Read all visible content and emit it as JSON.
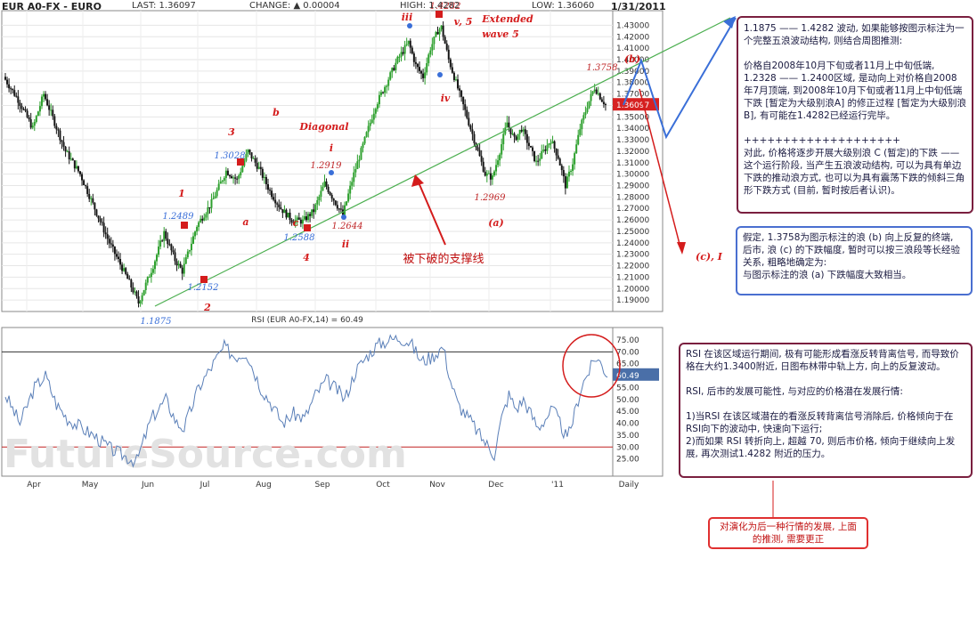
{
  "header": {
    "symbol": "EUR A0-FX - EURO",
    "last": "LAST: 1.36097",
    "change": "CHANGE: ▲ 0.00004",
    "high": "HIGH: 1.4282",
    "low": "LOW: 1.36060",
    "date": "1/31/2011"
  },
  "colors": {
    "candle_up": "#2ea02e",
    "candle_down": "#151515",
    "trendline": "#4caf50",
    "annotation_red": "#d41c1c",
    "annotation_blue": "#3a6fd8",
    "rsi_line": "#5a7fb8",
    "box_border": "#7a1f3f"
  },
  "chart_data": [
    {
      "type": "candlestick",
      "title": "",
      "ylabel": "",
      "ylim": [
        1.18,
        1.435
      ],
      "grid": true,
      "y_ticks": [
        "1.43000",
        "1.42000",
        "1.41000",
        "1.40000",
        "1.39000",
        "1.38000",
        "1.37000",
        "1.36000",
        "1.35000",
        "1.34000",
        "1.33000",
        "1.32000",
        "1.31000",
        "1.30000",
        "1.29000",
        "1.28000",
        "1.27000",
        "1.26000",
        "1.25000",
        "1.24000",
        "1.23000",
        "1.22000",
        "1.21000",
        "1.20000",
        "1.19000"
      ],
      "x_ticks": [
        "Apr",
        "May",
        "Jun",
        "Jul",
        "Aug",
        "Sep",
        "Oct",
        "Nov",
        "Dec",
        "'11",
        "Daily"
      ],
      "last_price_label": "1.36097",
      "price_path": [
        [
          0,
          1.385
        ],
        [
          8,
          1.365
        ],
        [
          16,
          1.34
        ],
        [
          22,
          1.37
        ],
        [
          28,
          1.345
        ],
        [
          34,
          1.32
        ],
        [
          42,
          1.3
        ],
        [
          50,
          1.27
        ],
        [
          58,
          1.24
        ],
        [
          66,
          1.215
        ],
        [
          72,
          1.195
        ],
        [
          74,
          1.1875
        ],
        [
          82,
          1.22
        ],
        [
          88,
          1.2489
        ],
        [
          94,
          1.225
        ],
        [
          98,
          1.2152
        ],
        [
          106,
          1.255
        ],
        [
          114,
          1.275
        ],
        [
          122,
          1.3028
        ],
        [
          128,
          1.295
        ],
        [
          134,
          1.32
        ],
        [
          140,
          1.305
        ],
        [
          146,
          1.285
        ],
        [
          152,
          1.27
        ],
        [
          158,
          1.26
        ],
        [
          164,
          1.2588
        ],
        [
          170,
          1.268
        ],
        [
          176,
          1.2919
        ],
        [
          182,
          1.275
        ],
        [
          186,
          1.2644
        ],
        [
          192,
          1.3
        ],
        [
          198,
          1.33
        ],
        [
          204,
          1.36
        ],
        [
          210,
          1.38
        ],
        [
          216,
          1.4
        ],
        [
          222,
          1.415
        ],
        [
          226,
          1.395
        ],
        [
          230,
          1.385
        ],
        [
          234,
          1.41
        ],
        [
          238,
          1.425
        ],
        [
          240,
          1.4282
        ],
        [
          244,
          1.4
        ],
        [
          248,
          1.38
        ],
        [
          252,
          1.36
        ],
        [
          256,
          1.34
        ],
        [
          260,
          1.32
        ],
        [
          264,
          1.3
        ],
        [
          268,
          1.2969
        ],
        [
          272,
          1.32
        ],
        [
          276,
          1.345
        ],
        [
          280,
          1.33
        ],
        [
          284,
          1.34
        ],
        [
          288,
          1.325
        ],
        [
          292,
          1.31
        ],
        [
          296,
          1.32
        ],
        [
          300,
          1.33
        ],
        [
          304,
          1.315
        ],
        [
          308,
          1.29
        ],
        [
          312,
          1.31
        ],
        [
          316,
          1.34
        ],
        [
          320,
          1.36
        ],
        [
          324,
          1.3758
        ],
        [
          328,
          1.365
        ],
        [
          330,
          1.361
        ]
      ],
      "labels": [
        {
          "text": "1.1875",
          "x": 72,
          "y": 1.1875,
          "color": "blue"
        },
        {
          "text": "1.2152",
          "x": 98,
          "y": 1.2152,
          "color": "blue"
        },
        {
          "text": "1.2489",
          "x": 88,
          "y": 1.2489,
          "color": "blue"
        },
        {
          "text": "1.3028",
          "x": 122,
          "y": 1.3028,
          "color": "blue"
        },
        {
          "text": "1.2588",
          "x": 164,
          "y": 1.2588,
          "color": "blue"
        },
        {
          "text": "1.2644",
          "x": 186,
          "y": 1.2644,
          "color": "red"
        },
        {
          "text": "1.2919",
          "x": 176,
          "y": 1.2919,
          "color": "red"
        },
        {
          "text": "1.4282",
          "x": 240,
          "y": 1.4282,
          "color": "red"
        },
        {
          "text": "1.2969",
          "x": 268,
          "y": 1.2969,
          "color": "red"
        },
        {
          "text": "1.3758",
          "x": 324,
          "y": 1.3758,
          "color": "red"
        }
      ],
      "wave_labels": [
        "1",
        "2",
        "3",
        "4",
        "a",
        "b",
        "c",
        "i",
        "ii",
        "iii",
        "iv",
        "v, 5",
        "Extended",
        "wave 5",
        "Diagonal",
        "(a)",
        "(b)",
        "(c), I"
      ],
      "support_line_label": "被下破的支撑线"
    },
    {
      "type": "line",
      "title": "RSI (EUR A0-FX,14) = 60.49",
      "ylim": [
        20,
        78
      ],
      "y_ticks": [
        "75.00",
        "70.00",
        "65.00",
        "60.00",
        "55.00",
        "50.00",
        "45.00",
        "40.00",
        "35.00",
        "30.00",
        "25.00"
      ],
      "reference_lines": [
        70,
        30
      ],
      "last_value_label": "60.49",
      "rsi_path": [
        [
          0,
          52
        ],
        [
          8,
          40
        ],
        [
          16,
          55
        ],
        [
          22,
          60
        ],
        [
          28,
          48
        ],
        [
          34,
          42
        ],
        [
          42,
          38
        ],
        [
          50,
          34
        ],
        [
          58,
          29
        ],
        [
          66,
          26
        ],
        [
          72,
          24
        ],
        [
          80,
          42
        ],
        [
          88,
          50
        ],
        [
          94,
          40
        ],
        [
          98,
          38
        ],
        [
          106,
          55
        ],
        [
          114,
          65
        ],
        [
          120,
          72
        ],
        [
          126,
          68
        ],
        [
          132,
          70
        ],
        [
          140,
          55
        ],
        [
          146,
          48
        ],
        [
          152,
          40
        ],
        [
          158,
          44
        ],
        [
          164,
          42
        ],
        [
          170,
          52
        ],
        [
          176,
          58
        ],
        [
          182,
          54
        ],
        [
          186,
          50
        ],
        [
          192,
          62
        ],
        [
          198,
          68
        ],
        [
          204,
          73
        ],
        [
          210,
          75
        ],
        [
          216,
          76
        ],
        [
          222,
          74
        ],
        [
          228,
          66
        ],
        [
          234,
          68
        ],
        [
          238,
          71
        ],
        [
          240,
          72
        ],
        [
          244,
          58
        ],
        [
          248,
          48
        ],
        [
          252,
          44
        ],
        [
          256,
          40
        ],
        [
          260,
          35
        ],
        [
          264,
          31
        ],
        [
          268,
          27
        ],
        [
          272,
          42
        ],
        [
          276,
          52
        ],
        [
          280,
          46
        ],
        [
          284,
          50
        ],
        [
          288,
          44
        ],
        [
          292,
          38
        ],
        [
          296,
          42
        ],
        [
          300,
          46
        ],
        [
          304,
          40
        ],
        [
          308,
          33
        ],
        [
          312,
          44
        ],
        [
          316,
          56
        ],
        [
          320,
          62
        ],
        [
          324,
          68
        ],
        [
          328,
          63
        ],
        [
          330,
          60.49
        ]
      ]
    }
  ],
  "notes": {
    "box1": "1.1875 —— 1.4282 波动, 如果能够按图示标注为一个完整五浪波动结构, 则结合周图推测:\n\n价格自2008年10月下旬或者11月上中旬低端, 1.2328 —— 1.2400区域, 是动向上对价格自2008年7月顶端, 到2008年10月下旬或者11月上中旬低端下跌 [暂定为大级别浪A] 的修正过程 [暂定为大级别浪B], 有可能在1.4282已经运行完毕。\n\n++++++++++++++++++++\n对此, 价格将逐步开展大级别浪 C (暂定)的下跌 —— 这个运行阶段, 当产生五浪波动结构, 可以为具有单边下跌的推动浪方式, 也可以为具有震荡下跌的倾斜三角形下跌方式 (目前, 暂时按后者认识)。",
    "box2": "假定, 1.3758为图示标注的浪 (b) 向上反复的终端, 后市, 浪 (c) 的下跌幅度, 暂时可以按三浪段等长经验关系, 粗略地确定为:\n与图示标注的浪 (a) 下跌幅度大致相当。",
    "box3": "RSI 在该区域运行期间, 极有可能形成看涨反转背离信号, 而导致价格在大约1.3400附近, 日图布林带中轨上方, 向上的反复波动。\n\nRSI, 后市的发展可能性, 与对应的价格潜在发展行情:\n\n1)当RSI 在该区域潜在的看涨反转背离信号消除后, 价格倾向于在RSI向下的波动中, 快速向下运行;\n2)而如果 RSI 转折向上, 超越 70, 则后市价格, 倾向于继续向上发展, 再次测试1.4282 附近的压力。",
    "box4": "对演化为后一种行情的发展, 上面的推测, 需要更正"
  },
  "watermark": "FutureSource.com"
}
